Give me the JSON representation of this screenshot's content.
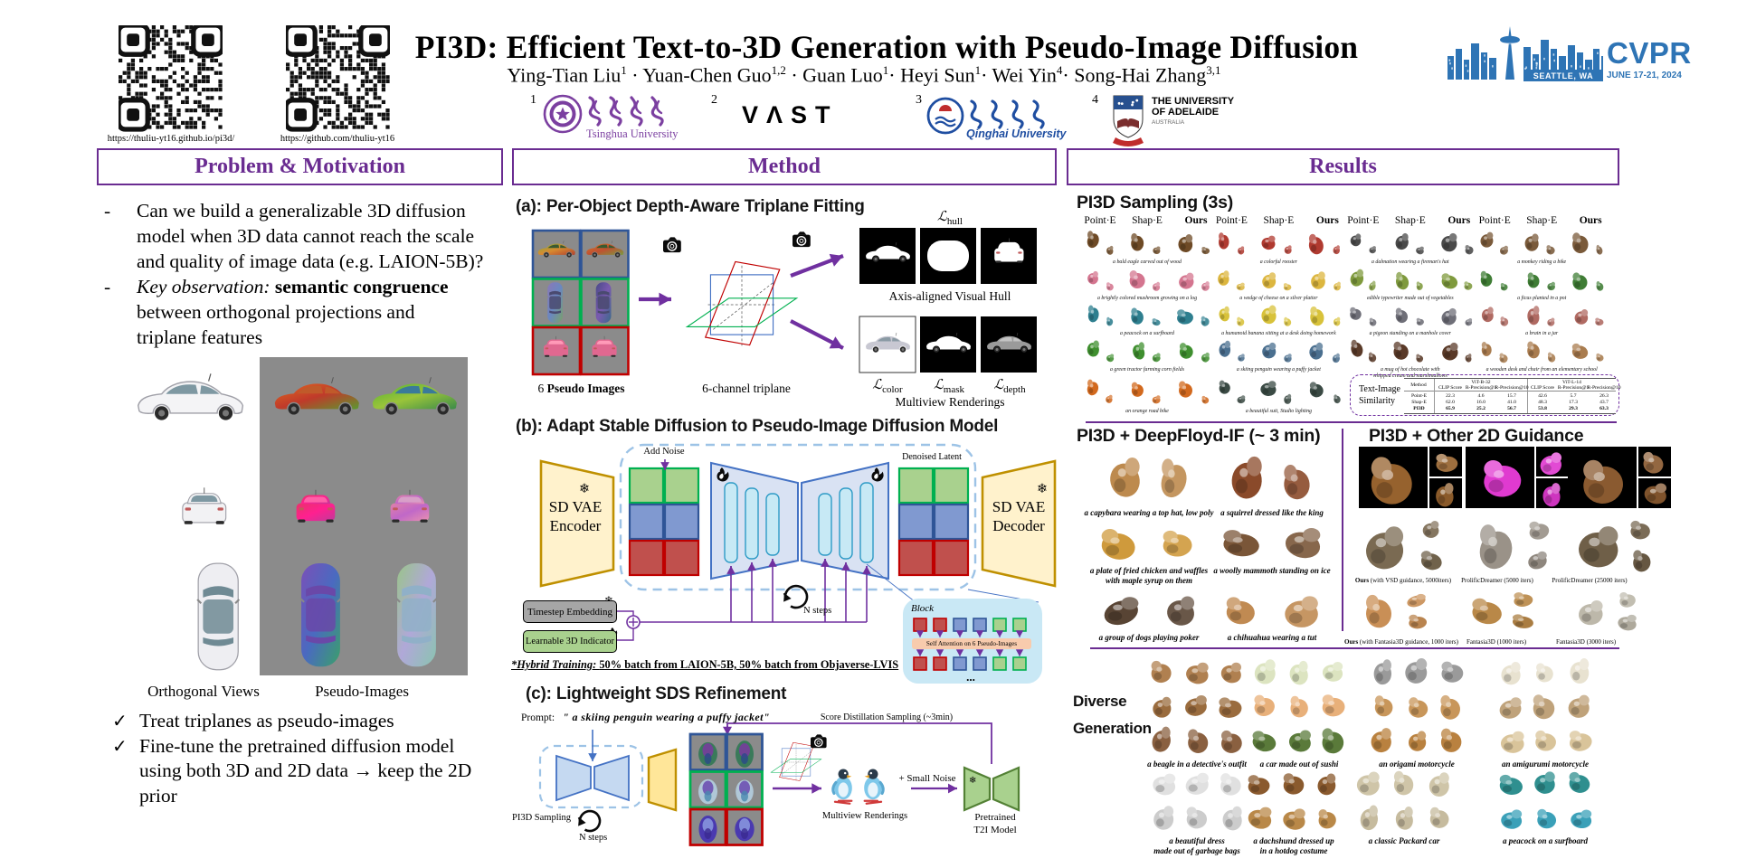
{
  "header": {
    "qr_codes": [
      {
        "label": "https://thuliu-yt16.github.io/pi3d/"
      },
      {
        "label": "https://github.com/thuliu-yt16"
      }
    ],
    "title": "PI3D: Efficient Text-to-3D Generation with Pseudo-Image Diffusion",
    "authors": [
      {
        "name": "Ying-Tian Liu",
        "sup": "1",
        "sep": " · "
      },
      {
        "name": "Yuan-Chen Guo",
        "sup": "1,2",
        "sep": " · "
      },
      {
        "name": "Guan Luo",
        "sup": "1",
        "sep": "· "
      },
      {
        "name": "Heyi Sun",
        "sup": "1",
        "sep": "· "
      },
      {
        "name": "Wei Yin",
        "sup": "4",
        "sep": "· "
      },
      {
        "name": "Song-Hai Zhang",
        "sup": "3,1",
        "sep": ""
      }
    ],
    "affiliations": [
      {
        "index": "1",
        "name": "Tsinghua University",
        "logo": "tsinghua"
      },
      {
        "index": "2",
        "name": "VAST",
        "logo": "vast"
      },
      {
        "index": "3",
        "name": "Qinghai University",
        "logo": "qinghai"
      },
      {
        "index": "4",
        "name": "THE UNIVERSITY\nOF ADELAIDE",
        "sub": "AUSTRALIA",
        "logo": "adelaide"
      }
    ],
    "conference": {
      "name": "CVPR",
      "location": "SEATTLE, WA",
      "dates": "JUNE 17-21, 2024"
    }
  },
  "columns": [
    {
      "title": "Problem & Motivation"
    },
    {
      "title": "Method"
    },
    {
      "title": "Results"
    }
  ],
  "problem": {
    "bullets": [
      {
        "segments": [
          {
            "text": "Can we build a generalizable 3D diffusion\nmodel when 3D data cannot reach the scale\nand quality of image data (e.g. LAION-5B)?"
          }
        ]
      },
      {
        "segments": [
          {
            "text": "Key observation: ",
            "style": "italic"
          },
          {
            "text": "semantic congruence",
            "style": "bold"
          },
          {
            "text": "\nbetween orthogonal projections and\ntriplane features"
          }
        ]
      }
    ],
    "figure": {
      "left_label": "Orthogonal Views",
      "right_label": "Pseudo-Images"
    },
    "checks": [
      {
        "segments": [
          {
            "text": "Treat triplanes as pseudo-images"
          }
        ]
      },
      {
        "segments": [
          {
            "text": "Fine-tune the pretrained diffusion model\nusing both 3D and 2D data  "
          },
          {
            "text": "→",
            "style": "bold"
          },
          {
            "text": " keep the 2D\nprior"
          }
        ]
      }
    ]
  },
  "method": {
    "a": {
      "heading": "(a): Per-Object Depth-Aware Triplane Fitting",
      "pseudo_label": [
        {
          "text": "6 "
        },
        {
          "text": "Pseudo Images",
          "style": "bold"
        }
      ],
      "triplane_label": "6-channel triplane",
      "hull_loss": {
        "sym": "ℒ",
        "sub": "hull"
      },
      "hull_caption": "Axis-aligned Visual Hull",
      "color_loss": {
        "sym": "ℒ",
        "sub": "color"
      },
      "mask_loss": {
        "sym": "ℒ",
        "sub": "mask"
      },
      "depth_loss": {
        "sym": "ℒ",
        "sub": "depth"
      },
      "renderings_caption": "Multiview Renderings"
    },
    "b": {
      "heading": "(b): Adapt Stable Diffusion to Pseudo-Image Diffusion Model",
      "encoder": "SD VAE\nEncoder",
      "decoder": "SD VAE\nDecoder",
      "add_noise": "Add Noise",
      "denoised": "Denoised Latent",
      "timestep": "Timestep Embedding",
      "indicator": "Learnable 3D Indicator",
      "n_steps": "N steps",
      "block": "Block",
      "self_attention": "Self Attention on 6 Pseudo-Images",
      "ellipsis": "...",
      "hybrid": [
        {
          "text": "*Hybrid Training: ",
          "style": "italic"
        },
        {
          "text": "50% batch from LAION-5B, 50% batch from Objaverse-LVIS"
        }
      ]
    },
    "c": {
      "heading": "(c): Lightweight SDS Refinement",
      "prompt_label": "Prompt:",
      "prompt": "\" a skiing penguin wearing a puffy jacket\"",
      "sds": "Score Distillation Sampling (~3min)",
      "pi3d_sampling": "PI3D Sampling",
      "n_steps": "N steps",
      "renderings": "Multiview Renderings",
      "small_noise": "+ Small Noise",
      "t2i": "Pretrained\nT2I Model"
    }
  },
  "results": {
    "sampling": {
      "heading": "PI3D Sampling (3s)",
      "methods": [
        "Point·E",
        "Shap·E",
        "Ours"
      ],
      "groups_per_row": 4,
      "rows": [
        [
          {
            "caption": "a bald eagle carved out of wood",
            "color": "#6e4a26"
          },
          {
            "caption": "a colorful rooster",
            "color": "#b03a30"
          },
          {
            "caption": "a dalmation wearing a fireman's hat",
            "color": "#4a4a4a"
          },
          {
            "caption": "a monkey riding a bike",
            "color": "#7a5a3a"
          }
        ],
        [
          {
            "caption": "a brightly colored mushroom growing on a log",
            "color": "#d4758f"
          },
          {
            "caption": "a wedge of cheese on a silver platter",
            "color": "#dcb63f"
          },
          {
            "caption": "edible typewriter made out of vegetables",
            "color": "#7f9a3d"
          },
          {
            "caption": "a ficus planted in a pot",
            "color": "#3f7d35"
          }
        ],
        [
          {
            "caption": "a peacock on a surfboard",
            "color": "#2e7f8f"
          },
          {
            "caption": "a humanoid banana sitting at a desk doing homework",
            "color": "#d8c23a"
          },
          {
            "caption": "a pigeon standing on a manhole cover",
            "color": "#6f6f78"
          },
          {
            "caption": "a brain in a jar",
            "color": "#b06a62"
          }
        ],
        [
          {
            "caption": "a green tractor farming corn fields",
            "color": "#3f8f2f"
          },
          {
            "caption": "a skiing penguin wearing a puffy jacket",
            "color": "#4a6f8f"
          },
          {
            "caption": "a mug of hot chocolate with\nwhipped cream and marshmallows",
            "color": "#5a3a28"
          },
          {
            "caption": "a wooden desk and chair from an elementary school",
            "color": "#a97c4f"
          }
        ],
        [
          {
            "caption": "an orange road bike",
            "color": "#d2691e"
          },
          {
            "caption": "a beautiful suit, Studio lighting",
            "color": "#3a4a44"
          }
        ]
      ],
      "table": {
        "label": "Text-Image\nSimilarity",
        "col_groups": [
          "ViT-B-32",
          "ViT-L-14"
        ],
        "columns": [
          "Method",
          "CLIP Score",
          "R-Precision@1",
          "R-Precision@10",
          "CLIP Score",
          "R-Precision@1",
          "R-Precision@10"
        ],
        "rows": [
          {
            "method": "Point-E",
            "values": [
              "22.3",
              "4.6",
              "15.7",
              "42.6",
              "5.7",
              "26.3"
            ],
            "bold": false
          },
          {
            "method": "Shap-E",
            "values": [
              "62.0",
              "16.0",
              "41.0",
              "48.3",
              "17.3",
              "43.7"
            ],
            "bold": false
          },
          {
            "method": "PI3D",
            "values": [
              "65.9",
              "25.2",
              "56.7",
              "53.8",
              "29.3",
              "63.3"
            ],
            "bold": true
          }
        ]
      }
    },
    "deepfloyd": {
      "heading": "PI3D + DeepFloyd-IF (~ 3 min)",
      "items": [
        {
          "caption": "a capybara wearing a top hat, low poly",
          "color": "#bd8a4e"
        },
        {
          "caption": "a squirrel dressed like the king",
          "color": "#8a4a2a"
        },
        {
          "caption": "a plate of fried chicken and waffles\nwith maple syrup on them",
          "color": "#cf9a3c"
        },
        {
          "caption": "a woolly mammoth standing on ice",
          "color": "#7a5638"
        },
        {
          "caption": "a group of dogs playing poker",
          "color": "#584434"
        },
        {
          "caption": "a chihuahua wearing a tut",
          "color": "#c08a52"
        }
      ]
    },
    "guidance": {
      "heading": "PI3D + Other 2D Guidance",
      "rows": [
        {
          "bg": "#000000",
          "colors": [
            "#96622e",
            "#e03ad0",
            "#8a5a30"
          ],
          "captions": [
            "",
            "",
            ""
          ]
        },
        {
          "bg": "#ffffff",
          "colors": [
            "#7a6a52",
            "#9a9288",
            "#6f5f48"
          ],
          "captions": [
            "Ours (with VSD guidance, 5000iters)",
            "ProlificDreamer (5000 iters)",
            "ProlificDreamer (25000 iters)"
          ]
        },
        {
          "bg": "#ffffff",
          "colors": [
            "#c98f56",
            "#b98848",
            "#bdb8aa"
          ],
          "captions": [
            "Ours (with Fantasia3D guidance, 1000 iters)",
            "Fantasia3D (1000 iters)",
            "Fantasia3D (3000 iters)"
          ]
        }
      ]
    },
    "diverse": {
      "heading": "Diverse\nGeneration",
      "items": [
        {
          "caption": "a beagle in a detective's outfit",
          "row_colors": [
            "#b08050",
            "#9a6c3e",
            "#8a6040"
          ],
          "rows": 3
        },
        {
          "caption": "a car made out of sushi",
          "row_colors": [
            "#dce4c0",
            "#e8b07a",
            "#5a7a3a"
          ],
          "rows": 3
        },
        {
          "caption": "an origami motorcycle",
          "row_colors": [
            "#9a9a9a",
            "#c8965a",
            "#b9813f"
          ],
          "rows": 3
        },
        {
          "caption": "an amigurumi motorcycle",
          "row_colors": [
            "#e8e2d0",
            "#bfa27a",
            "#d9c49a"
          ],
          "rows": 3
        },
        {
          "caption": "a beautiful dress\nmade out of garbage bags",
          "row_colors": [
            "#e0e0e0",
            "#cccccc"
          ],
          "rows": 2
        },
        {
          "caption": "a dachshund dressed up\nin a hotdog costume",
          "row_colors": [
            "#8a5a2e",
            "#b98848"
          ],
          "rows": 2
        },
        {
          "caption": "a classic Packard car",
          "row_colors": [
            "#cfc5a8",
            "#c6bb9e"
          ],
          "rows": 2
        },
        {
          "caption": "a peacock on a surfboard",
          "row_colors": [
            "#2f8f8f",
            "#3aa0b8"
          ],
          "rows": 2
        }
      ]
    }
  }
}
